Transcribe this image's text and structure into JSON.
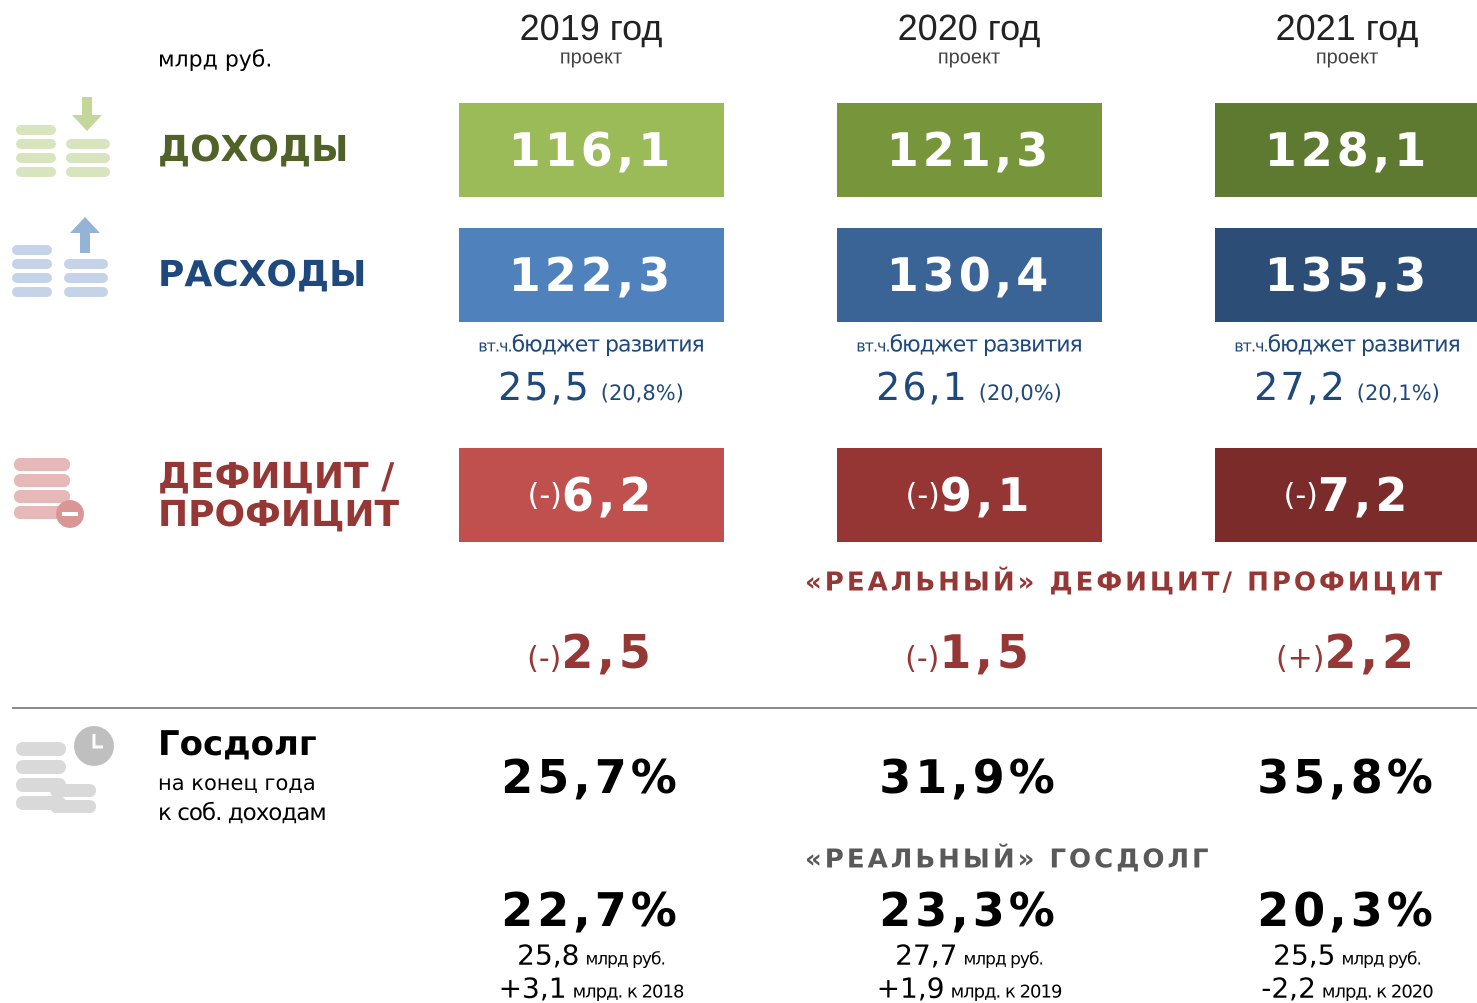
{
  "unit": "млрд руб.",
  "columns": [
    {
      "year": "2019 год",
      "status": "проект"
    },
    {
      "year": "2020 год",
      "status": "проект"
    },
    {
      "year": "2021 год",
      "status": "проект"
    }
  ],
  "income": {
    "label": "ДОХОДЫ",
    "color": "#4f6228",
    "box_colors": [
      "#9bbb59",
      "#77963b",
      "#5e7a30"
    ],
    "values": [
      "116,1",
      "121,3",
      "128,1"
    ]
  },
  "expenses": {
    "label": "РАСХОДЫ",
    "color": "#1f497d",
    "box_colors": [
      "#4f81bd",
      "#3a6396",
      "#2c4e76"
    ],
    "values": [
      "122,3",
      "130,4",
      "135,3"
    ]
  },
  "development": {
    "prefix": "вт.ч.",
    "label": "бюджет развития",
    "color": "#1f497d",
    "values": [
      {
        "amount": "25,5",
        "share": "(20,8%)"
      },
      {
        "amount": "26,1",
        "share": "(20,0%)"
      },
      {
        "amount": "27,2",
        "share": "(20,1%)"
      }
    ]
  },
  "deficit": {
    "label_lines": [
      "ДЕФИЦИТ /",
      "ПРОФИЦИТ"
    ],
    "color": "#953735",
    "box_colors": [
      "#c0504d",
      "#963634",
      "#7b2c2a"
    ],
    "values": [
      {
        "sign": "(-)",
        "amount": "6,2"
      },
      {
        "sign": "(-)",
        "amount": "9,1"
      },
      {
        "sign": "(-)",
        "amount": "7,2"
      }
    ]
  },
  "real_deficit": {
    "title": "«РЕАЛЬНЫЙ» ДЕФИЦИТ/ ПРОФИЦИТ",
    "color": "#953735",
    "values": [
      {
        "sign": "(-)",
        "amount": "2,5"
      },
      {
        "sign": "(-)",
        "amount": "1,5"
      },
      {
        "sign": "(+)",
        "amount": "2,2"
      }
    ]
  },
  "debt": {
    "title": "Госдолг",
    "subtitle": "на конец года",
    "basis": "к соб. доходам",
    "values": [
      "25,7%",
      "31,9%",
      "35,8%"
    ]
  },
  "real_debt": {
    "title": "«РЕАЛЬНЫЙ» ГОСДОЛГ",
    "values": [
      {
        "share": "22,7%",
        "amount": "25,8",
        "amount_unit": "млрд руб.",
        "change": "+3,1",
        "change_unit": "млрд. к 2018"
      },
      {
        "share": "23,3%",
        "amount": "27,7",
        "amount_unit": "млрд руб.",
        "change": "+1,9",
        "change_unit": "млрд. к 2019"
      },
      {
        "share": "20,3%",
        "amount": "25,5",
        "amount_unit": "млрд руб.",
        "change": "-2,2",
        "change_unit": "млрд. к 2020"
      }
    ]
  }
}
